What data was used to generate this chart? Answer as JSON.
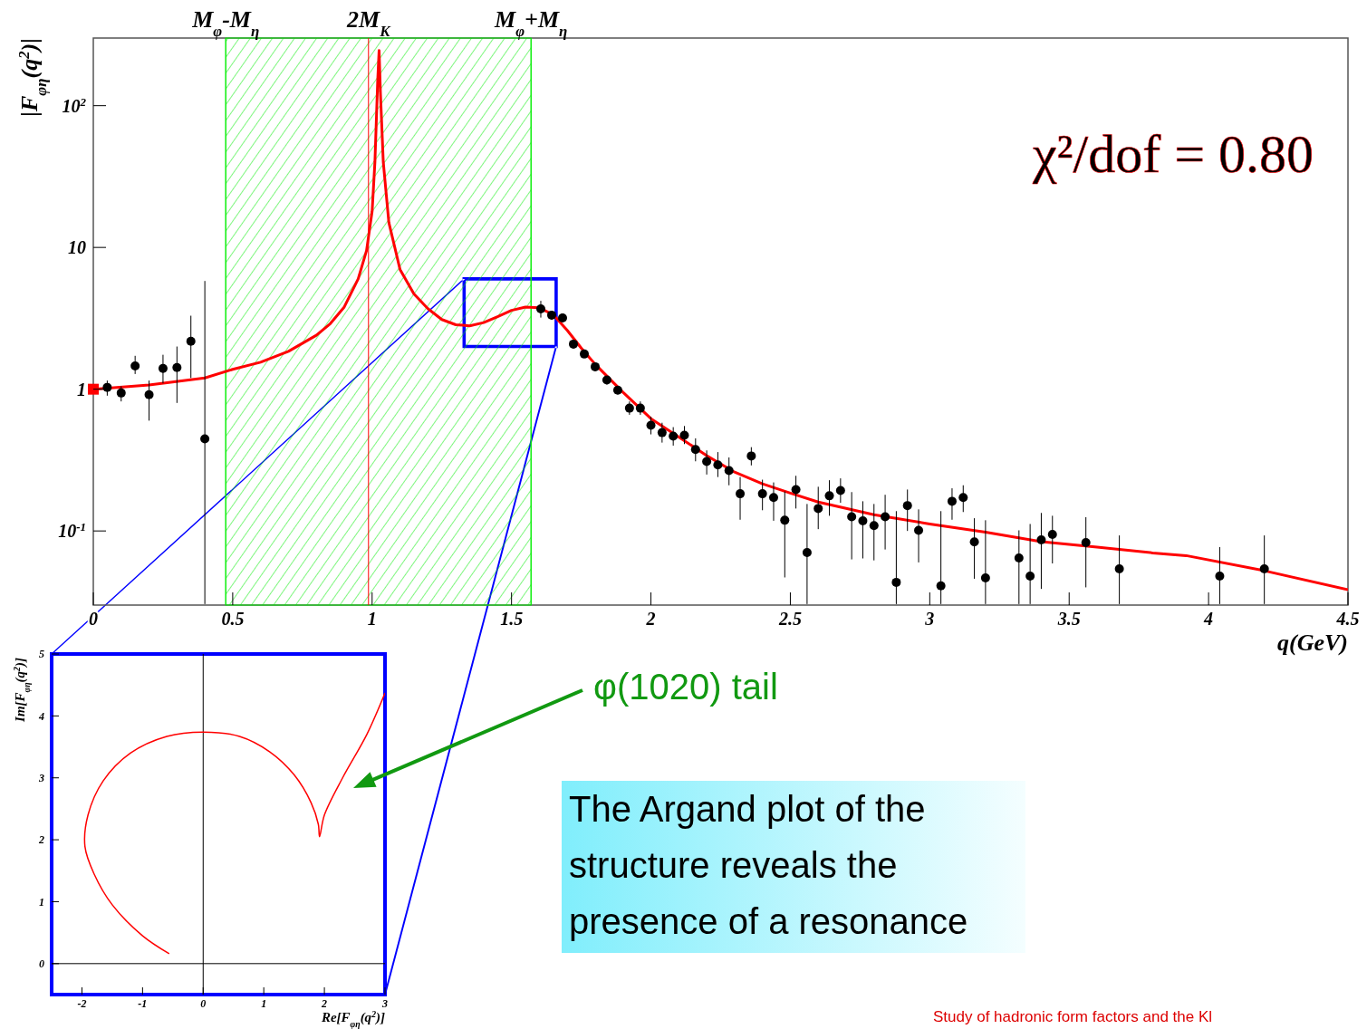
{
  "chart_data": [
    {
      "type": "line",
      "xlabel": "q(GeV)",
      "ylabel": "|F$_{φη}$(q$^{2}$)|",
      "log": true,
      "xlim": [
        0,
        4.5
      ],
      "ylim": [
        0.03,
        300
      ],
      "xticks": [
        0,
        0.5,
        1,
        1.5,
        2,
        2.5,
        3,
        3.5,
        4,
        4.5
      ],
      "yticks": [
        {
          "value": 0.1,
          "label": "10$^{-1}$"
        },
        1,
        10,
        {
          "value": 100,
          "label": "10$^{2}$"
        }
      ],
      "series": [
        {
          "color": "#ff0000",
          "x": [
            0,
            0.2,
            0.4,
            0.5,
            0.6,
            0.7,
            0.8,
            0.85,
            0.9,
            0.95,
            0.98,
            1.0,
            1.01,
            1.02,
            1.025,
            1.03,
            1.04,
            1.06,
            1.1,
            1.15,
            1.2,
            1.25,
            1.3,
            1.35,
            1.4,
            1.45,
            1.5,
            1.55,
            1.6,
            1.65,
            1.7,
            1.75,
            1.8,
            1.9,
            2.0,
            2.1,
            2.2,
            2.3,
            2.4,
            2.5,
            2.6,
            2.8,
            3.0,
            3.2,
            3.4,
            3.6,
            3.8,
            3.92,
            4.2,
            4.5
          ],
          "values": [
            1.0,
            1.07,
            1.2,
            1.38,
            1.55,
            1.85,
            2.4,
            2.9,
            3.8,
            6,
            9.5,
            18,
            40,
            150,
            245,
            120,
            40,
            15,
            7,
            4.7,
            3.7,
            3.1,
            2.85,
            2.8,
            2.95,
            3.25,
            3.6,
            3.8,
            3.75,
            3.35,
            2.6,
            1.95,
            1.5,
            0.95,
            0.62,
            0.46,
            0.34,
            0.26,
            0.215,
            0.185,
            0.16,
            0.13,
            0.112,
            0.098,
            0.084,
            0.077,
            0.07,
            0.067,
            0.0524,
            0.0385
          ]
        },
        {
          "type": "scatter",
          "marker": "circle",
          "color": "#000000",
          "x": [
            0.05,
            0.1,
            0.15,
            0.2,
            0.25,
            0.3,
            0.35,
            0.4,
            1.605,
            1.644,
            1.683,
            1.722,
            1.761,
            1.8,
            1.842,
            1.881,
            1.923,
            1.962,
            2.0,
            2.04,
            2.08,
            2.12,
            2.16,
            2.2,
            2.24,
            2.28,
            2.32,
            2.36,
            2.4,
            2.44,
            2.48,
            2.52,
            2.56,
            2.6,
            2.64,
            2.68,
            2.72,
            2.76,
            2.8,
            2.84,
            2.88,
            2.92,
            2.96,
            3.04,
            3.08,
            3.12,
            3.16,
            3.2,
            3.32,
            3.36,
            3.4,
            3.44,
            3.56,
            3.68,
            4.04,
            4.2
          ],
          "values": [
            1.03,
            0.94,
            1.46,
            0.915,
            1.4,
            1.42,
            2.18,
            0.446,
            3.69,
            3.33,
            3.18,
            2.08,
            1.77,
            1.44,
            1.16,
            0.985,
            0.735,
            0.735,
            0.556,
            0.494,
            0.467,
            0.473,
            0.375,
            0.309,
            0.292,
            0.267,
            0.183,
            0.338,
            0.183,
            0.172,
            0.119,
            0.196,
            0.0704,
            0.144,
            0.177,
            0.193,
            0.126,
            0.118,
            0.109,
            0.126,
            0.0434,
            0.151,
            0.101,
            0.041,
            0.162,
            0.172,
            0.0838,
            0.0466,
            0.0644,
            0.0481,
            0.0866,
            0.0944,
            0.0828,
            0.054,
            0.0481,
            0.054
          ],
          "errors": [
            [
              0.9,
              1.15
            ],
            [
              0.82,
              1.05
            ],
            [
              1.28,
              1.72
            ],
            [
              0.6,
              1.15
            ],
            [
              1.1,
              1.75
            ],
            [
              0.8,
              2.0
            ],
            [
              1.2,
              3.3
            ],
            [
              0.0305,
              5.8
            ],
            [
              3.2,
              4.2
            ],
            [
              3.1,
              3.55
            ],
            [
              3.0,
              3.35
            ],
            [
              1.95,
              2.2
            ],
            [
              1.68,
              1.87
            ],
            [
              1.36,
              1.52
            ],
            [
              1.08,
              1.24
            ],
            [
              0.92,
              1.05
            ],
            [
              0.66,
              0.82
            ],
            [
              0.66,
              0.82
            ],
            [
              0.48,
              0.64
            ],
            [
              0.42,
              0.58
            ],
            [
              0.4,
              0.54
            ],
            [
              0.41,
              0.55
            ],
            [
              0.31,
              0.45
            ],
            [
              0.25,
              0.37
            ],
            [
              0.24,
              0.36
            ],
            [
              0.21,
              0.33
            ],
            [
              0.12,
              0.24
            ],
            [
              0.29,
              0.39
            ],
            [
              0.14,
              0.23
            ],
            [
              0.118,
              0.22
            ],
            [
              0.047,
              0.19
            ],
            [
              0.144,
              0.245
            ],
            [
              0.0305,
              0.155
            ],
            [
              0.103,
              0.205
            ],
            [
              0.128,
              0.228
            ],
            [
              0.158,
              0.235
            ],
            [
              0.063,
              0.188
            ],
            [
              0.064,
              0.162
            ],
            [
              0.062,
              0.155
            ],
            [
              0.074,
              0.18
            ],
            [
              0.0305,
              0.138
            ],
            [
              0.1,
              0.196
            ],
            [
              0.06,
              0.142
            ],
            [
              0.0305,
              0.138
            ],
            [
              0.12,
              0.2
            ],
            [
              0.136,
              0.21
            ],
            [
              0.046,
              0.123
            ],
            [
              0.0305,
              0.119
            ],
            [
              0.0305,
              0.101
            ],
            [
              0.0305,
              0.112
            ],
            [
              0.039,
              0.134
            ],
            [
              0.059,
              0.128
            ],
            [
              0.04,
              0.125
            ],
            [
              0.0305,
              0.093
            ],
            [
              0.0305,
              0.077
            ],
            [
              0.0305,
              0.093
            ]
          ]
        },
        {
          "type": "scatter",
          "marker": "square",
          "color": "#ff0000",
          "x": [
            0
          ],
          "values": [
            1
          ]
        }
      ],
      "bands": [
        {
          "axis": "x",
          "from": 0.475,
          "to": 1.57,
          "color": "#00ee00"
        }
      ],
      "ref_lines": [
        {
          "axis": "x",
          "value": 0.475,
          "label": "M$_{φ}$-M$_{η}$",
          "color": "#00ee00"
        },
        {
          "axis": "x",
          "value": 0.987,
          "label": "2M$_{K}$",
          "color": "#ff0000"
        },
        {
          "axis": "x",
          "value": 1.57,
          "label": "M$_{φ}$+M$_{η}$",
          "color": "#00ee00"
        }
      ],
      "annotations": [
        "χ²/dof = 0.80"
      ]
    },
    {
      "type": "line",
      "xlabel": "Re[F$_{φη}$(q$^{2}$)]",
      "ylabel": "Im[F$_{φη}$(q$^{2}$)]",
      "xlim": [
        -2.5,
        3
      ],
      "ylim": [
        -0.5,
        5
      ],
      "xticks": [
        -2,
        -1,
        0,
        1,
        2,
        3
      ],
      "yticks": [
        0,
        1,
        2,
        3,
        4,
        5
      ],
      "series": [
        {
          "color": "#ff0000",
          "x": [
            -0.56,
            -1.0,
            -1.5,
            -1.8,
            -1.95,
            -1.9,
            -1.65,
            -1.2,
            -0.6,
            0,
            0.6,
            1.1,
            1.5,
            1.78,
            1.9,
            1.92,
            2.0,
            2.3,
            2.7,
            3.0
          ],
          "values": [
            0.16,
            0.45,
            0.95,
            1.45,
            1.89,
            2.4,
            2.95,
            3.4,
            3.67,
            3.74,
            3.67,
            3.42,
            3.05,
            2.6,
            2.25,
            2.05,
            2.4,
            3.0,
            3.7,
            4.37
          ]
        }
      ],
      "ref_lines": [
        {
          "axis": "x",
          "value": 0,
          "color": "#000000"
        },
        {
          "axis": "y",
          "value": 0,
          "color": "#000000"
        }
      ],
      "annotations": [
        "φ(1020) tail",
        "The Argand plot of the structure reveals the presence of a resonance",
        "Study of hadronic form factors and the Kl"
      ]
    }
  ]
}
